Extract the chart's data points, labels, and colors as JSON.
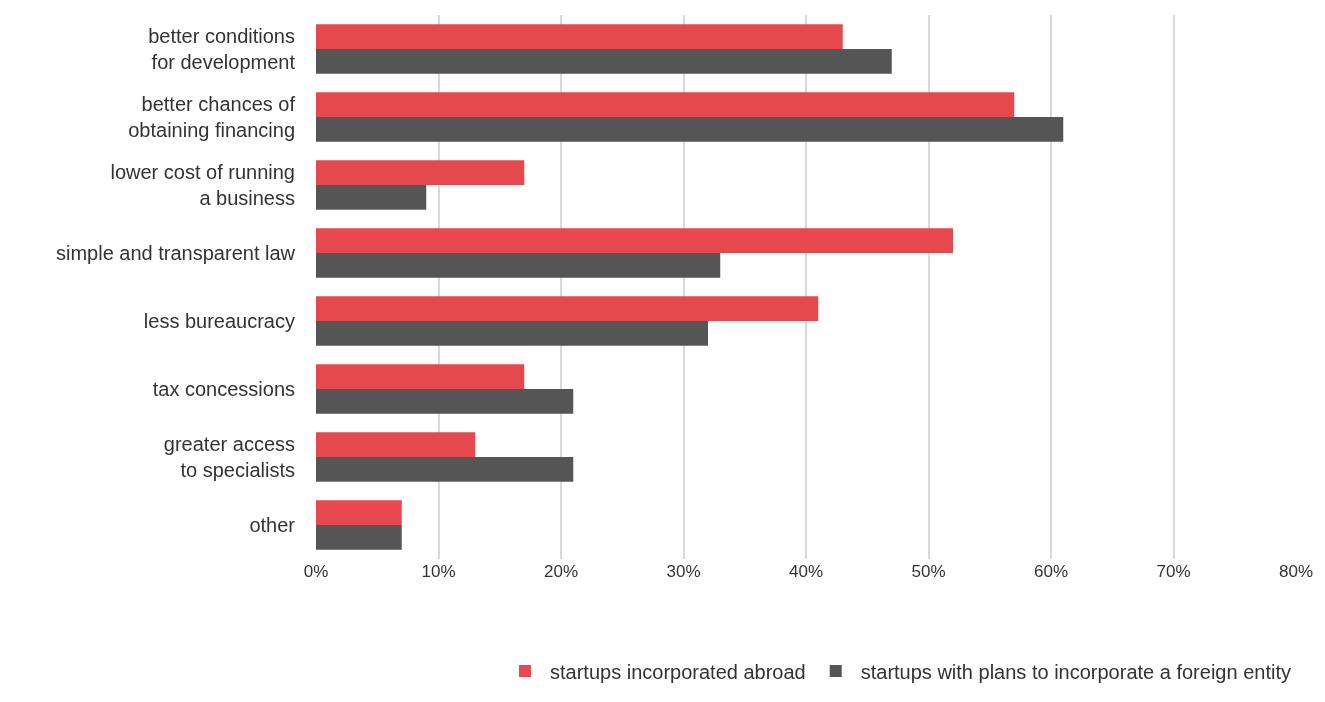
{
  "chart_data": {
    "type": "bar",
    "orientation": "horizontal",
    "categories": [
      "better conditions\nfor development",
      "better chances of\nobtaining financing",
      "lower cost of running\na business",
      "simple and transparent law",
      "less bureaucracy",
      "tax concessions",
      "greater access\nto specialists",
      "other"
    ],
    "series": [
      {
        "name": "startups incorporated abroad",
        "color": "#e5484d",
        "values": [
          43,
          57,
          17,
          52,
          41,
          17,
          13,
          7
        ]
      },
      {
        "name": "startups with plans to incorporate a foreign entity",
        "color": "#555555",
        "values": [
          47,
          61,
          9,
          33,
          32,
          21,
          21,
          7
        ]
      }
    ],
    "xlim": [
      0,
      80
    ],
    "xticks": [
      {
        "value": 0,
        "label": "0%"
      },
      {
        "value": 10,
        "label": "10%"
      },
      {
        "value": 20,
        "label": "20%"
      },
      {
        "value": 30,
        "label": "30%"
      },
      {
        "value": 40,
        "label": "40%"
      },
      {
        "value": 50,
        "label": "50%"
      },
      {
        "value": 60,
        "label": "60%"
      },
      {
        "value": 70,
        "label": "70%"
      },
      {
        "value": 80,
        "label": "80%"
      }
    ],
    "grid": "x",
    "legend": "bottom"
  }
}
